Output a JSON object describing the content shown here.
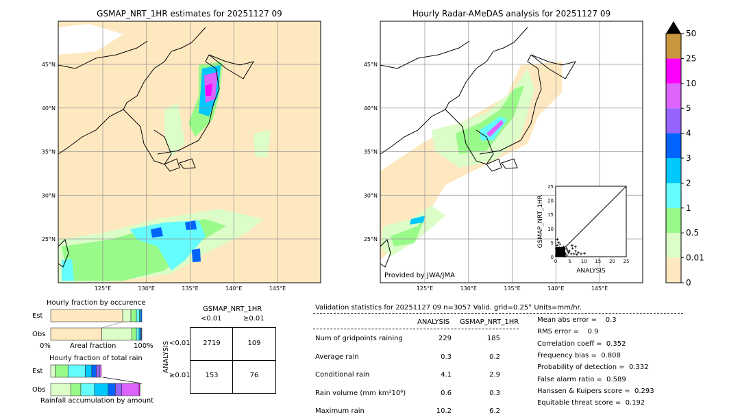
{
  "left_map": {
    "title": "GSMAP_NRT_1HR estimates for 20251127 09"
  },
  "right_map": {
    "title": "Hourly Radar-AMeDAS analysis for 20251127 09",
    "credit": "Provided by JWA/JMA"
  },
  "lat_ticks": [
    {
      "v": 45,
      "l": "45°N"
    },
    {
      "v": 40,
      "l": "40°N"
    },
    {
      "v": 35,
      "l": "35°N"
    },
    {
      "v": 30,
      "l": "30°N"
    },
    {
      "v": 25,
      "l": "25°N"
    }
  ],
  "lon_ticks": [
    {
      "v": 125,
      "l": "125°E"
    },
    {
      "v": 130,
      "l": "130°E"
    },
    {
      "v": 135,
      "l": "135°E"
    },
    {
      "v": 140,
      "l": "140°E"
    },
    {
      "v": 145,
      "l": "145°E"
    }
  ],
  "colorbar": {
    "levels": [
      "0",
      "0.01",
      "0.5",
      "1",
      "2",
      "3",
      "4",
      "5",
      "10",
      "25",
      "50"
    ],
    "colors": [
      "#fee8c0",
      "#dcfcc8",
      "#98fa88",
      "#64fcfc",
      "#00c8fc",
      "#0064fc",
      "#9664fc",
      "#dc64fc",
      "#fc00fc",
      "#c8963c"
    ]
  },
  "chart_data": {
    "type": "scatter",
    "xlabel": "ANALYSIS",
    "ylabel": "GSMAP_NRT_1HR",
    "xlim": [
      0,
      25
    ],
    "ylim": [
      0,
      25
    ],
    "ticks": [
      "0",
      "5",
      "10",
      "15",
      "20",
      "25"
    ],
    "points": [
      [
        0.3,
        0.2
      ],
      [
        0.5,
        1
      ],
      [
        1,
        0.5
      ],
      [
        1.5,
        2
      ],
      [
        2,
        1
      ],
      [
        2.5,
        0.5
      ],
      [
        3,
        1.5
      ],
      [
        0.2,
        3
      ],
      [
        0.5,
        4
      ],
      [
        1,
        5
      ],
      [
        1.5,
        4.5
      ],
      [
        2,
        3
      ],
      [
        3,
        2.5
      ],
      [
        3.5,
        1
      ],
      [
        4,
        0.5
      ],
      [
        4.5,
        1.5
      ],
      [
        5,
        2
      ],
      [
        5.5,
        1
      ],
      [
        6,
        3
      ],
      [
        6.5,
        1
      ],
      [
        7,
        2
      ],
      [
        7.5,
        0.8
      ],
      [
        8,
        1.5
      ],
      [
        9,
        1
      ],
      [
        10.2,
        1.2
      ],
      [
        0.8,
        2.5
      ],
      [
        1.2,
        1.5
      ],
      [
        2.2,
        0.3
      ],
      [
        0.1,
        0.6
      ],
      [
        0.4,
        1.8
      ],
      [
        1.8,
        0.9
      ],
      [
        2.8,
        3.5
      ],
      [
        3.2,
        0.2
      ],
      [
        4.2,
        2.2
      ],
      [
        5.8,
        4
      ],
      [
        7,
        3.5
      ],
      [
        0.6,
        6.2
      ],
      [
        1.4,
        3.2
      ],
      [
        2.6,
        2
      ],
      [
        3.8,
        3
      ]
    ]
  },
  "occurrence": {
    "title": "Hourly fraction by occurence",
    "est_label": "Est",
    "obs_label": "Obs",
    "x_left": "0%",
    "x_mid": "Areal fraction",
    "x_right": "100%",
    "est": [
      0.79,
      0.09,
      0.06,
      0.035,
      0.015,
      0.01
    ],
    "obs": [
      0.56,
      0.33,
      0.05,
      0.03,
      0.015,
      0.01,
      0.005
    ]
  },
  "total_rain": {
    "title": "Hourly fraction of total rain",
    "est_label": "Est",
    "obs_label": "Obs",
    "footer": "Rainfall accumulation by amount",
    "est": [
      0.05,
      0.14,
      0.19,
      0.07,
      0.05,
      0.04,
      0.015
    ],
    "obs": [
      0.22,
      0.11,
      0.15,
      0.15,
      0.08,
      0.07,
      0.19,
      0.01
    ]
  },
  "contingency": {
    "title": "GSMAP_NRT_1HR",
    "col_lt": "<0.01",
    "col_ge": "≥0.01",
    "ylabel": "ANALYSIS",
    "row_lt": "<0.01",
    "row_ge": "≥0.01",
    "cells": [
      "2719",
      "109",
      "153",
      "76"
    ]
  },
  "stats": {
    "header": "Validation statistics for 20251127 09  n=3057 Valid. grid=0.25° Units=mm/hr.",
    "col1": "ANALYSIS",
    "col2": "GSMAP_NRT_1HR",
    "rows": [
      {
        "label": "Num of gridpoints raining",
        "a": "229",
        "g": "185"
      },
      {
        "label": "Average rain",
        "a": "0.3",
        "g": "0.2"
      },
      {
        "label": "Conditional rain",
        "a": "4.1",
        "g": "2.9"
      },
      {
        "label": "Rain volume (mm km²10⁶)",
        "a": "0.6",
        "g": "0.3"
      },
      {
        "label": "Maximum rain",
        "a": "10.2",
        "g": "6.2"
      }
    ],
    "scores": [
      "Mean abs error =    0.3",
      "RMS error =    0.9",
      "Correlation coeff =  0.352",
      "Frequency bias =  0.808",
      "Probability of detection =  0.332",
      "False alarm ratio =  0.589",
      "Hanssen & Kuipers score =  0.293",
      "Equitable threat score =  0.192"
    ]
  }
}
